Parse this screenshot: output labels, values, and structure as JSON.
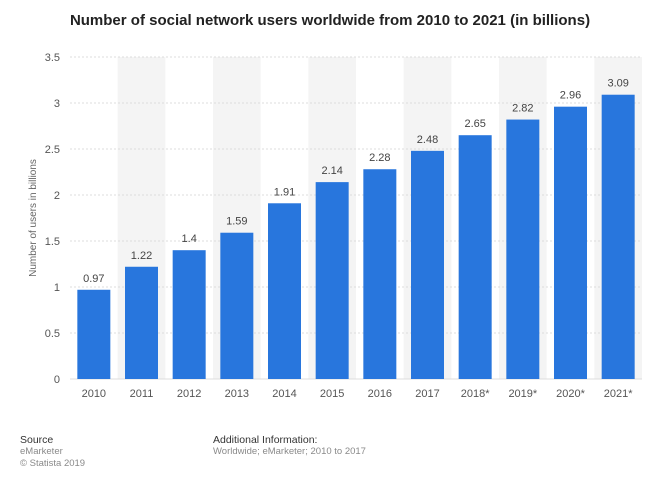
{
  "chart_data": {
    "type": "bar",
    "title": "Number of social network users worldwide from 2010 to 2021 (in billions)",
    "xlabel": "",
    "ylabel": "Number of users in billions",
    "ylim": [
      0,
      3.5
    ],
    "yticks": [
      "0",
      "0.5",
      "1",
      "1.5",
      "2",
      "2.5",
      "3",
      "3.5"
    ],
    "categories": [
      "2010",
      "2011",
      "2012",
      "2013",
      "2014",
      "2015",
      "2016",
      "2017",
      "2018*",
      "2019*",
      "2020*",
      "2021*"
    ],
    "values": [
      0.97,
      1.22,
      1.4,
      1.59,
      1.91,
      2.14,
      2.28,
      2.48,
      2.65,
      2.82,
      2.96,
      3.09
    ],
    "value_labels": [
      "0.97",
      "1.22",
      "1.4",
      "1.59",
      "1.91",
      "2.14",
      "2.28",
      "2.48",
      "2.65",
      "2.82",
      "2.96",
      "3.09"
    ],
    "grid": true,
    "legend": "none",
    "bar_color": "#2876dd",
    "band_color": "#f4f4f4"
  },
  "footer": {
    "source_heading": "Source",
    "source_name": "eMarketer",
    "copyright": "© Statista 2019",
    "info_heading": "Additional Information:",
    "info_text": "Worldwide; eMarketer; 2010 to 2017"
  }
}
